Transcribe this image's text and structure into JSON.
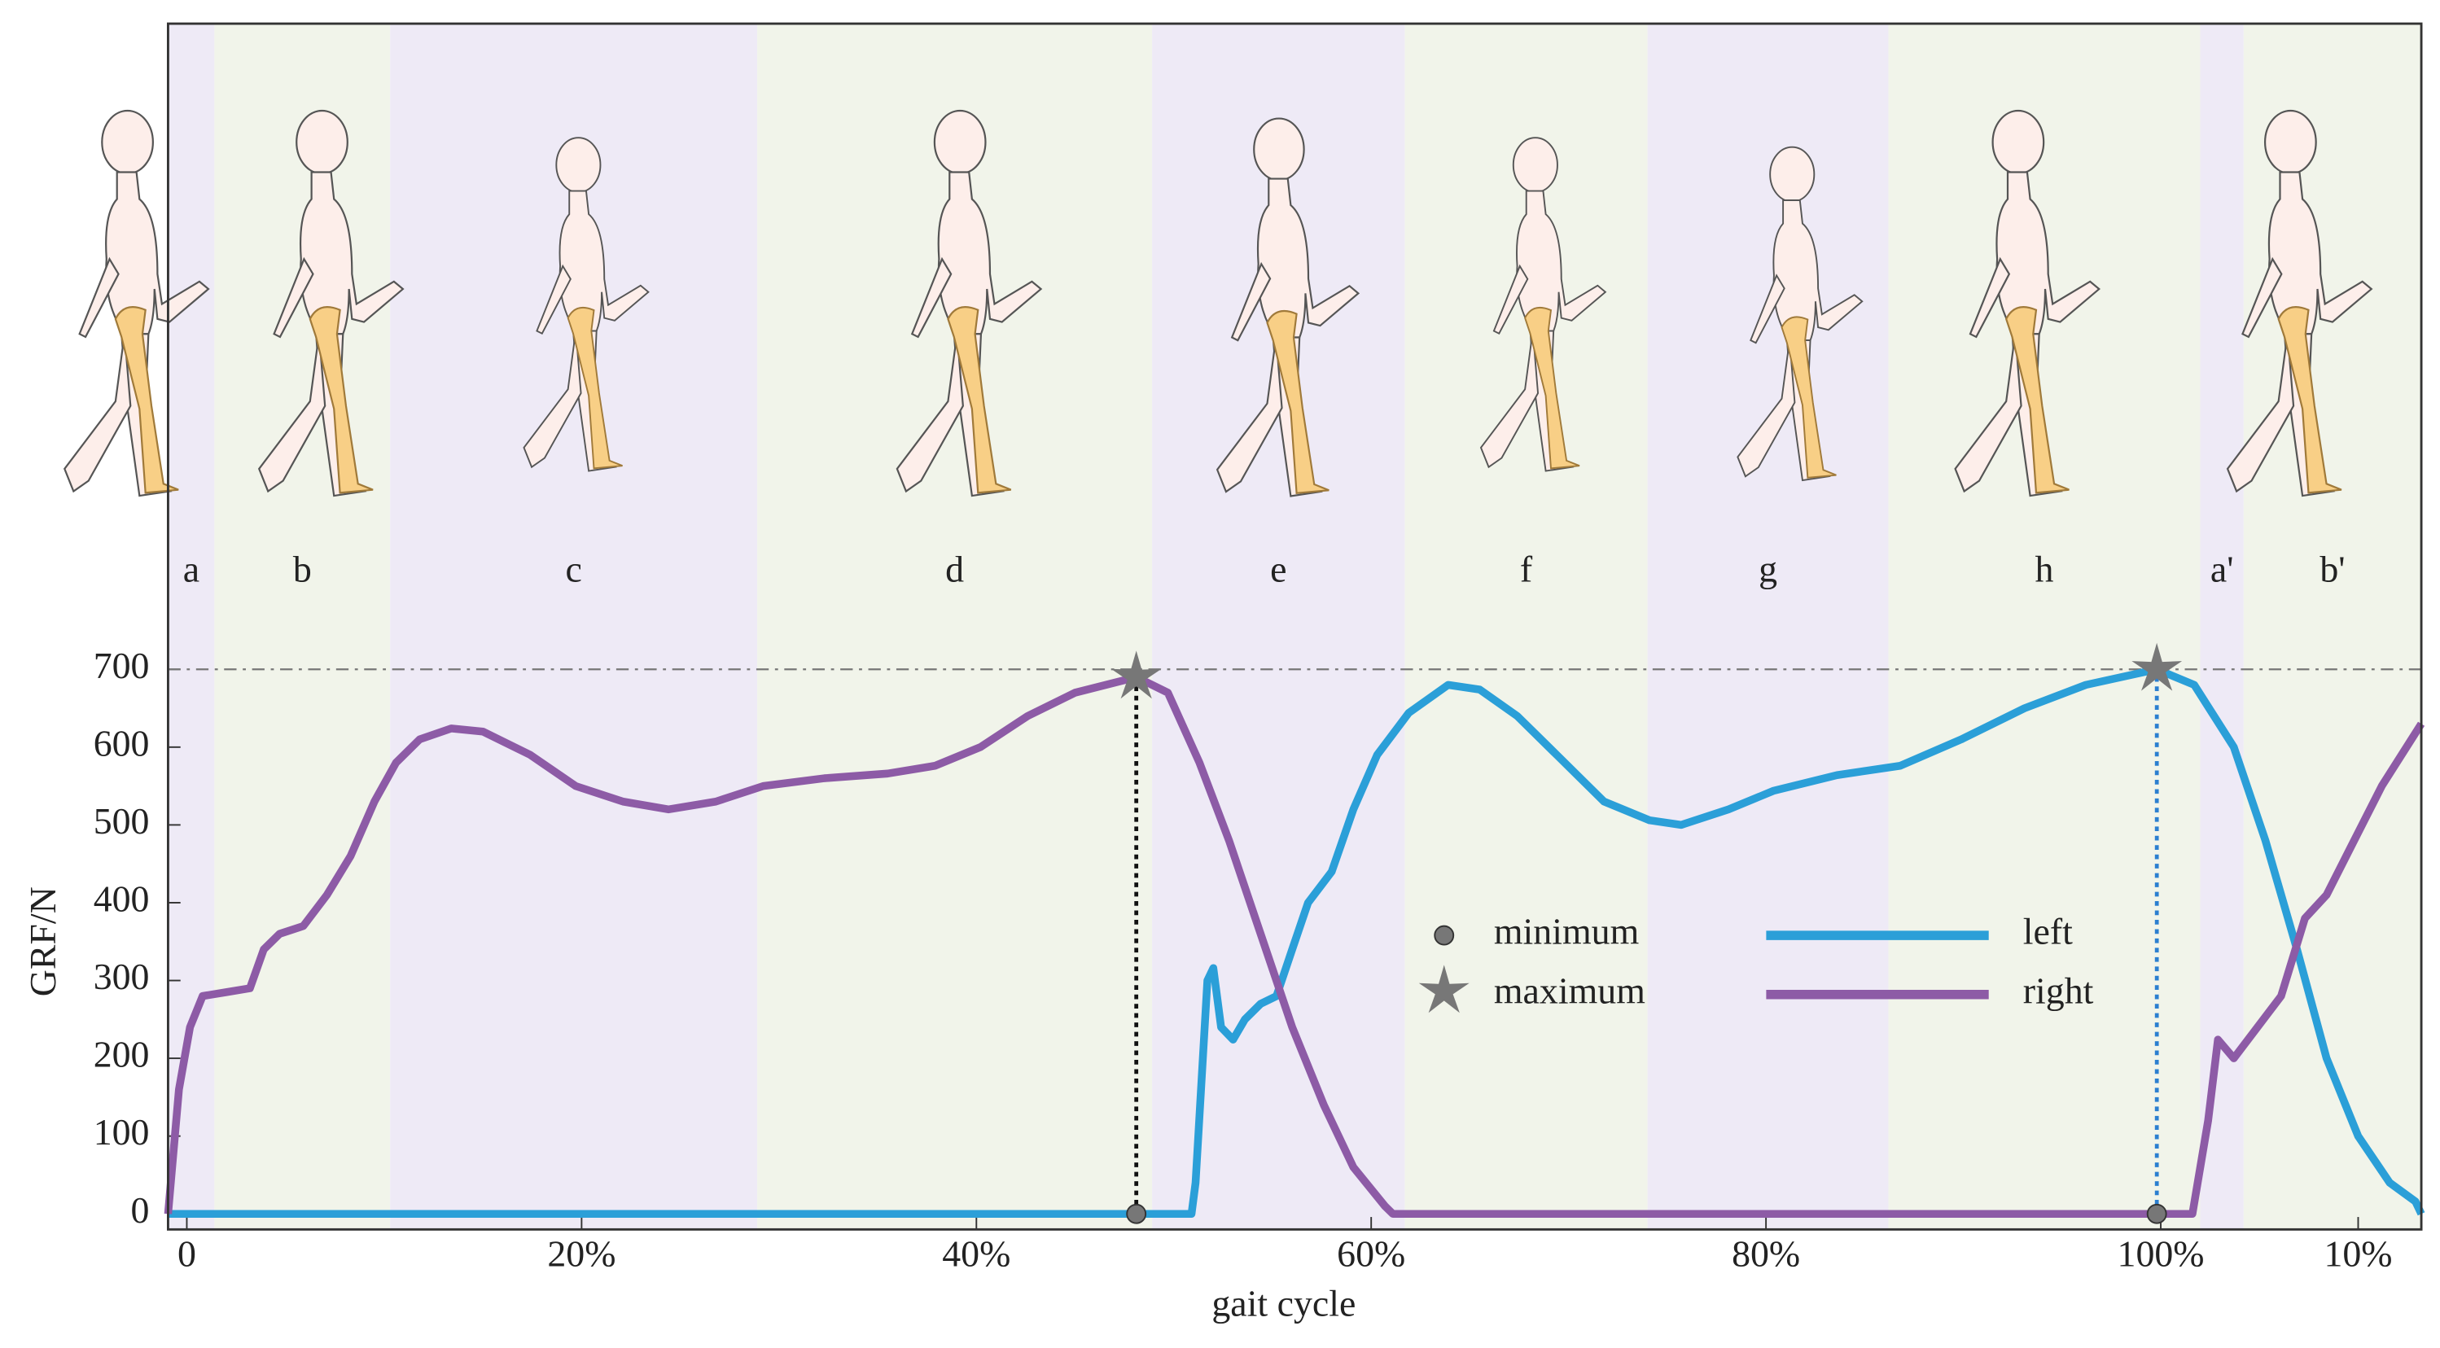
{
  "chart_data": {
    "type": "line",
    "x_label": "gait cycle",
    "y_label": "GRF/N",
    "xlim": [
      -0.95,
      113.2
    ],
    "ylim": [
      -20,
      1530
    ],
    "xticks": [
      0,
      {
        "value": 20,
        "label": "20%"
      },
      {
        "value": 40,
        "label": "40%"
      },
      {
        "value": 60,
        "label": "60%"
      },
      {
        "value": 80,
        "label": "80%"
      },
      {
        "value": 100,
        "label": "100%"
      },
      {
        "value": 110,
        "label": "10%"
      }
    ],
    "yticks": [
      0,
      100,
      200,
      300,
      400,
      500,
      600,
      700
    ],
    "reference_line": 700,
    "phases": [
      {
        "label": "a",
        "start": -0.95,
        "end": 1.4,
        "color": "#eeeaf6"
      },
      {
        "label": "b",
        "start": 1.4,
        "end": 10.3,
        "color": "#f1f4ea"
      },
      {
        "label": "c",
        "start": 10.3,
        "end": 28.9,
        "color": "#eeeaf6"
      },
      {
        "label": "d",
        "start": 28.9,
        "end": 48.9,
        "color": "#f1f4ea"
      },
      {
        "label": "e",
        "start": 48.9,
        "end": 61.7,
        "color": "#eeeaf6"
      },
      {
        "label": "f",
        "start": 61.7,
        "end": 74.0,
        "color": "#f1f4ea"
      },
      {
        "label": "g",
        "start": 74.0,
        "end": 86.2,
        "color": "#eeeaf6"
      },
      {
        "label": "h",
        "start": 86.2,
        "end": 102.0,
        "color": "#f1f4ea"
      },
      {
        "label": "a'",
        "start": 102.0,
        "end": 104.2,
        "color": "#eeeaf6"
      },
      {
        "label": "b'",
        "start": 104.2,
        "end": 113.2,
        "color": "#f1f4ea"
      }
    ],
    "series": [
      {
        "name": "left",
        "color": "#2b9fd8",
        "x": [
          -0.95,
          50.9,
          51.1,
          51.7,
          52,
          52.4,
          53,
          53.6,
          54.4,
          55.2,
          56,
          56.8,
          58,
          59.1,
          60.3,
          61.9,
          63.9,
          65.5,
          67.4,
          69.4,
          71.8,
          74.1,
          75.7,
          78.1,
          80.4,
          83.6,
          86.8,
          89.9,
          93.1,
          96.2,
          99.8,
          101.7,
          103.7,
          105.3,
          106.9,
          108.4,
          110,
          111.6,
          112.9,
          113.2
        ],
        "values": [
          0,
          0,
          40,
          300,
          316,
          240,
          224,
          250,
          270,
          280,
          340,
          400,
          440,
          520,
          590,
          644,
          680,
          674,
          640,
          590,
          530,
          506,
          500,
          520,
          544,
          564,
          576,
          610,
          650,
          680,
          700,
          680,
          600,
          480,
          340,
          200,
          100,
          40,
          16,
          0
        ]
      },
      {
        "name": "right",
        "color": "#8d5ba6",
        "x": [
          -0.95,
          -0.4,
          0.16,
          0.8,
          2.0,
          3.2,
          3.9,
          4.7,
          5.9,
          7.1,
          8.3,
          9.5,
          10.6,
          11.8,
          13.4,
          15,
          17.4,
          19.7,
          22.1,
          24.4,
          26.8,
          29.2,
          32.3,
          35.5,
          37.9,
          40.2,
          42.6,
          45,
          48.1,
          49.7,
          51.3,
          52.8,
          54.4,
          56,
          57.6,
          59.1,
          60.7,
          61.1,
          101.6,
          102.4,
          102.9,
          103.7,
          104.9,
          106.1,
          107.3,
          108.4,
          109.6,
          111.2,
          113.2
        ],
        "values": [
          0,
          160,
          240,
          280,
          285,
          290,
          340,
          360,
          370,
          410,
          460,
          530,
          580,
          610,
          624,
          620,
          590,
          550,
          530,
          520,
          530,
          550,
          560,
          566,
          576,
          600,
          640,
          670,
          690,
          670,
          580,
          480,
          360,
          240,
          140,
          60,
          10,
          0,
          0,
          120,
          224,
          200,
          240,
          280,
          380,
          410,
          470,
          550,
          630
        ]
      }
    ],
    "markers": [
      {
        "name": "minimum",
        "points": [
          {
            "x": 48.1,
            "y": 0
          },
          {
            "x": 99.8,
            "y": 0
          }
        ]
      },
      {
        "name": "maximum",
        "points": [
          {
            "x": 48.1,
            "y": 690
          },
          {
            "x": 99.8,
            "y": 700
          }
        ]
      }
    ]
  }
}
